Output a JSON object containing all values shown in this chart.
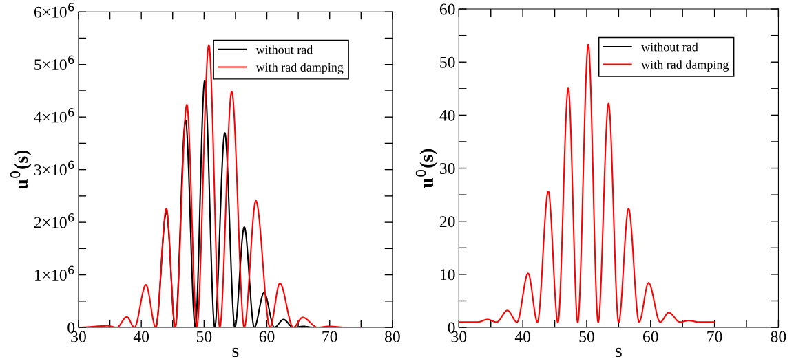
{
  "chart_data": [
    {
      "type": "line",
      "xlabel": "s",
      "ylabel": "u$^{0}$(s)",
      "xlim": [
        30,
        80
      ],
      "ylim": [
        0,
        6000000
      ],
      "xticks": [
        30,
        {
          "value": 35,
          "label": null
        },
        40,
        {
          "value": 45,
          "label": null
        },
        50,
        {
          "value": 55,
          "label": null
        },
        60,
        {
          "value": 65,
          "label": null
        },
        70,
        {
          "value": 75,
          "label": null
        },
        80
      ],
      "yticks": [
        0,
        {
          "value": 500000,
          "label": null
        },
        {
          "value": 1000000,
          "label": "1×10$^{6}$"
        },
        {
          "value": 1500000,
          "label": null
        },
        {
          "value": 2000000,
          "label": "2×10$^{6}$"
        },
        {
          "value": 2500000,
          "label": null
        },
        {
          "value": 3000000,
          "label": "3×10$^{6}$"
        },
        {
          "value": 3500000,
          "label": null
        },
        {
          "value": 4000000,
          "label": "4×10$^{6}$"
        },
        {
          "value": 4500000,
          "label": null
        },
        {
          "value": 5000000,
          "label": "5×10$^{6}$"
        },
        {
          "value": 5500000,
          "label": null
        },
        {
          "value": 6000000,
          "label": "6×10$^{6}$"
        }
      ],
      "legend": "top right",
      "series": [
        {
          "name": "without rad",
          "color": "#000000",
          "x": [
            42.3,
            44.0,
            45.4,
            47.05,
            48.6,
            50.1,
            51.7,
            53.3,
            54.9,
            56.4,
            58.0,
            59.55,
            61.2,
            62.65,
            64.2,
            65.8,
            67.4,
            75
          ],
          "values": [
            0,
            2200000,
            0,
            3940000,
            0,
            4690000,
            0,
            3700000,
            0,
            1910000,
            0,
            660000,
            0,
            150000,
            0,
            20000,
            0,
            0
          ]
        },
        {
          "name": "with rad damping",
          "color": "#ff0000",
          "x": [
            30,
            34.6,
            36.1,
            37.7,
            38.9,
            40.74,
            42.3,
            44.0,
            45.4,
            47.26,
            48.85,
            50.76,
            52.5,
            54.4,
            56.4,
            58.25,
            60.5,
            62.07,
            64.2,
            65.7,
            68.1,
            69.9,
            72.5,
            75
          ],
          "values": [
            0,
            30000,
            0,
            200000,
            0,
            810000,
            0,
            2260000,
            0,
            4240000,
            0,
            5370000,
            0,
            4490000,
            0,
            2410000,
            0,
            840000,
            0,
            190000,
            0,
            20000,
            0,
            0
          ]
        }
      ]
    },
    {
      "type": "line",
      "xlabel": "s",
      "ylabel": "u$^{0}$(s)",
      "xlim": [
        30,
        80
      ],
      "ylim": [
        0,
        60
      ],
      "xticks": [
        30,
        {
          "value": 35,
          "label": null
        },
        40,
        {
          "value": 45,
          "label": null
        },
        50,
        {
          "value": 55,
          "label": null
        },
        60,
        {
          "value": 65,
          "label": null
        },
        70,
        {
          "value": 75,
          "label": null
        },
        80
      ],
      "yticks": [
        0,
        {
          "value": 5,
          "label": null
        },
        10,
        {
          "value": 15,
          "label": null
        },
        20,
        {
          "value": 25,
          "label": null
        },
        30,
        {
          "value": 35,
          "label": null
        },
        40,
        {
          "value": 45,
          "label": null
        },
        50,
        {
          "value": 55,
          "label": null
        },
        60
      ],
      "legend": "top right",
      "series": [
        {
          "name": "without rad",
          "color": "#000000"
        },
        {
          "name": "with rad damping",
          "color": "#ff0000",
          "x": [
            30,
            32.9,
            34.5,
            35.9,
            37.6,
            39.1,
            40.83,
            42.3,
            43.99,
            45.5,
            47.12,
            48.6,
            50.25,
            51.8,
            53.42,
            55.0,
            56.55,
            58.2,
            59.68,
            61.5,
            62.84,
            64.6,
            65.97,
            67.5,
            70
          ],
          "values": [
            1.0,
            1.0,
            1.5,
            1.0,
            3.2,
            1.0,
            10.2,
            1.0,
            25.7,
            0.9,
            45.1,
            0.9,
            53.3,
            0.9,
            42.2,
            0.9,
            22.4,
            1.0,
            8.4,
            1.0,
            2.8,
            1.0,
            1.3,
            1.0,
            1.0
          ]
        }
      ]
    }
  ]
}
